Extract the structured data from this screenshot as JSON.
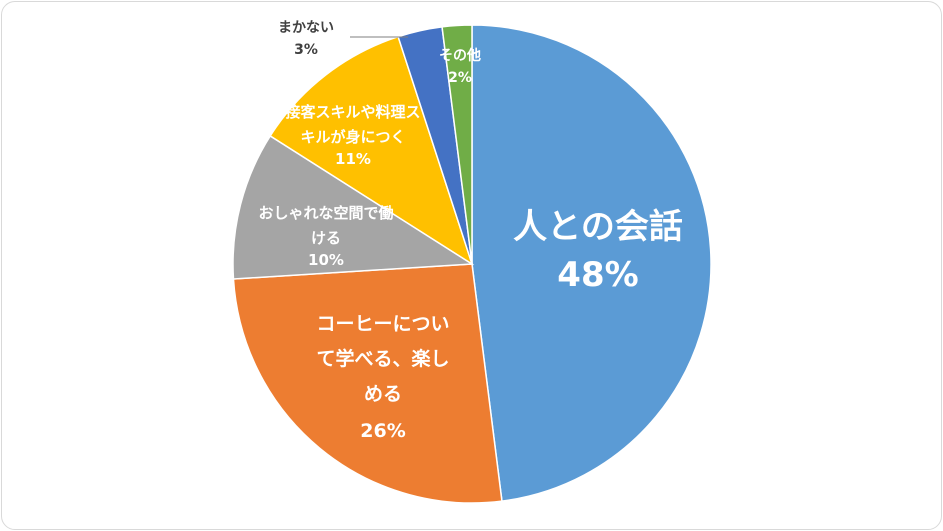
{
  "chart_data": {
    "type": "pie",
    "slices": [
      {
        "label_lines": [
          "人との会話"
        ],
        "value": 48,
        "percent_label": "48%",
        "color": "#5B9BD5"
      },
      {
        "label_lines": [
          "コーヒーについ",
          "て学べる、楽し",
          "める"
        ],
        "value": 26,
        "percent_label": "26%",
        "color": "#ED7D31"
      },
      {
        "label_lines": [
          "おしゃれな空間で働",
          "ける"
        ],
        "value": 10,
        "percent_label": "10%",
        "color": "#A5A5A5"
      },
      {
        "label_lines": [
          "接客スキルや料理ス",
          "キルが身につく"
        ],
        "value": 11,
        "percent_label": "11%",
        "color": "#FFC000"
      },
      {
        "label_lines": [
          "まかない"
        ],
        "value": 3,
        "percent_label": "3%",
        "color": "#4472C4"
      },
      {
        "label_lines": [
          "その他"
        ],
        "value": 2,
        "percent_label": "2%",
        "color": "#70AD47"
      }
    ],
    "start_angle_deg": 0,
    "direction": "clockwise"
  }
}
